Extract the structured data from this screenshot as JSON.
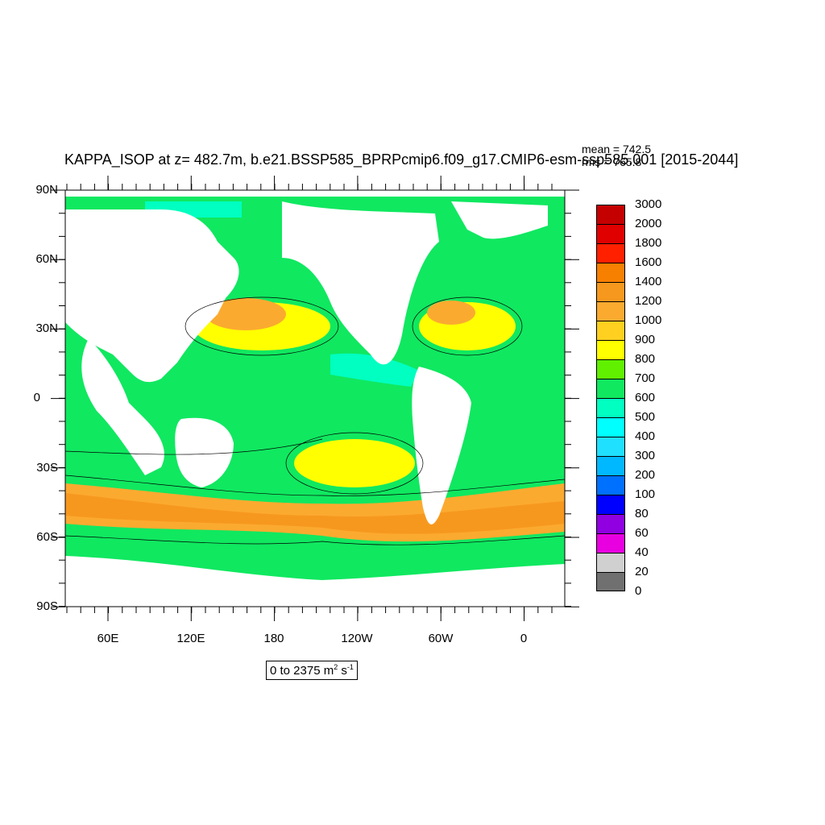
{
  "title": "KAPPA_ISOP at z= 482.7m, b.e21.BSSP585_BPRPcmip6.f09_g17.CMIP6-esm-ssp585.001 [2015-2044]",
  "stats": {
    "mean": "mean = 742.5",
    "rms": "rms = 765.8"
  },
  "range_label": {
    "prefix": "0 to 2375 m",
    "sup1": "2",
    "mid": " s",
    "sup2": "-1"
  },
  "y_axis_labels": [
    "90N",
    "60N",
    "30N",
    "0",
    "30S",
    "60S",
    "90S"
  ],
  "x_axis_labels": [
    "60E",
    "120E",
    "180",
    "120W",
    "60W",
    "0"
  ],
  "colorbar": {
    "labels": [
      "3000",
      "2000",
      "1800",
      "1600",
      "1400",
      "1200",
      "1000",
      "900",
      "800",
      "700",
      "600",
      "500",
      "400",
      "300",
      "200",
      "100",
      "80",
      "60",
      "40",
      "20",
      "0"
    ],
    "colors": [
      "#c40000",
      "#e00000",
      "#ff2000",
      "#f78000",
      "#f7981e",
      "#fbaa30",
      "#ffd020",
      "#ffff00",
      "#60f000",
      "#10e860",
      "#00ffc0",
      "#00ffff",
      "#20e0ff",
      "#00b8ff",
      "#0070ff",
      "#0000ff",
      "#9000e0",
      "#e800e0",
      "#d0d0d0",
      "#707070"
    ]
  },
  "map_colors": {
    "land": "#ffffff",
    "ocean_base": "#10e860",
    "low": "#00ffc0",
    "mid": "#60f000",
    "high": "#ffff00",
    "higher": "#fbaa30",
    "highest": "#f7981e",
    "extreme": "#e00000"
  }
}
